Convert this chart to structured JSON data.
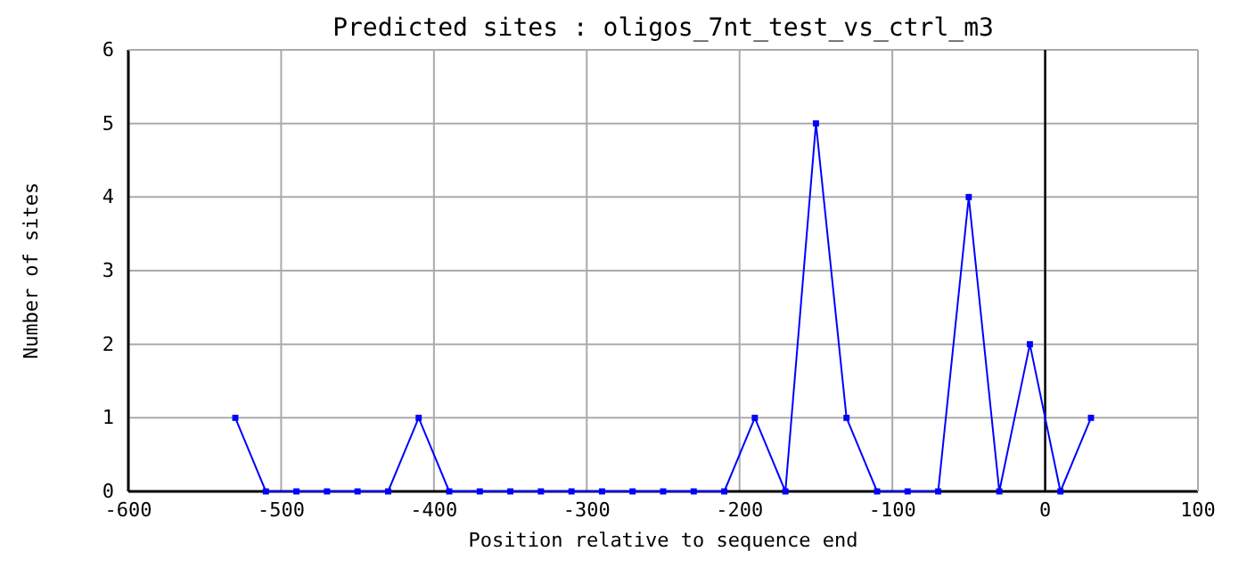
{
  "chart_data": {
    "type": "line",
    "title": "Predicted sites : oligos_7nt_test_vs_ctrl_m3",
    "xlabel": "Position relative to sequence end",
    "ylabel": "Number of sites",
    "x": [
      -530,
      -510,
      -490,
      -470,
      -450,
      -430,
      -410,
      -390,
      -370,
      -350,
      -330,
      -310,
      -290,
      -270,
      -250,
      -230,
      -210,
      -190,
      -170,
      -150,
      -130,
      -110,
      -90,
      -70,
      -50,
      -30,
      -10,
      10,
      30
    ],
    "series": [
      {
        "color": "#0000ff",
        "values": [
          1,
          0,
          0,
          0,
          0,
          0,
          1,
          0,
          0,
          0,
          0,
          0,
          0,
          0,
          0,
          0,
          0,
          1,
          0,
          5,
          1,
          0,
          0,
          0,
          4,
          0,
          2,
          0,
          1
        ]
      }
    ],
    "xlim": [
      -600,
      100
    ],
    "xticks": [
      -600,
      -500,
      -400,
      -300,
      -200,
      -100,
      0,
      100
    ],
    "ylim": [
      0,
      6
    ],
    "yticks": [
      0,
      1,
      2,
      3,
      4,
      5,
      6
    ],
    "grid": true,
    "marker": "square",
    "line_style": "solid",
    "ref_lines": [
      {
        "axis": "x",
        "value": 0,
        "color": "#000000"
      }
    ]
  }
}
